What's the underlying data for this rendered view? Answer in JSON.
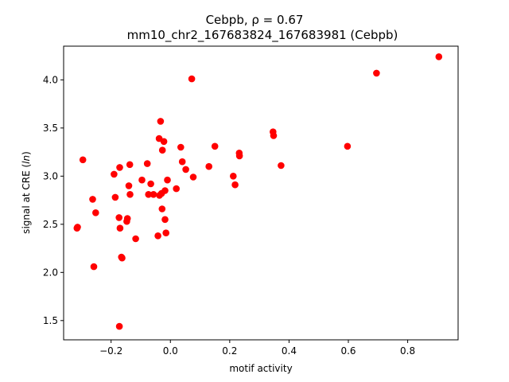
{
  "chart_data": {
    "type": "scatter",
    "title_line1": "Cebpb, ρ = 0.67",
    "title_line2": "mm10_chr2_167683824_167683981 (Cebpb)",
    "xlabel": "motif activity",
    "ylabel_prefix": "signal at CRE (",
    "ylabel_italic": "ln",
    "ylabel_suffix": ")",
    "xlim": [
      -0.36,
      0.97
    ],
    "ylim": [
      1.3,
      4.35
    ],
    "xticks": [
      -0.2,
      0.0,
      0.2,
      0.4,
      0.6,
      0.8
    ],
    "xtick_labels": [
      "−0.2",
      "0.0",
      "0.2",
      "0.4",
      "0.6",
      "0.8"
    ],
    "yticks": [
      1.5,
      2.0,
      2.5,
      3.0,
      3.5,
      4.0
    ],
    "ytick_labels": [
      "1.5",
      "2.0",
      "2.5",
      "3.0",
      "3.5",
      "4.0"
    ],
    "grid": false,
    "marker_color": "#ff0000",
    "points": [
      {
        "x": -0.315,
        "y": 2.46
      },
      {
        "x": -0.313,
        "y": 2.47
      },
      {
        "x": -0.295,
        "y": 3.17
      },
      {
        "x": -0.262,
        "y": 2.76
      },
      {
        "x": -0.258,
        "y": 2.06
      },
      {
        "x": -0.252,
        "y": 2.62
      },
      {
        "x": -0.19,
        "y": 3.02
      },
      {
        "x": -0.186,
        "y": 2.78
      },
      {
        "x": -0.171,
        "y": 3.09
      },
      {
        "x": -0.173,
        "y": 2.57
      },
      {
        "x": -0.17,
        "y": 2.46
      },
      {
        "x": -0.165,
        "y": 2.16
      },
      {
        "x": -0.163,
        "y": 2.15
      },
      {
        "x": -0.172,
        "y": 1.44
      },
      {
        "x": -0.147,
        "y": 2.53
      },
      {
        "x": -0.145,
        "y": 2.56
      },
      {
        "x": -0.14,
        "y": 2.9
      },
      {
        "x": -0.137,
        "y": 3.12
      },
      {
        "x": -0.136,
        "y": 2.81
      },
      {
        "x": -0.117,
        "y": 2.35
      },
      {
        "x": -0.096,
        "y": 2.96
      },
      {
        "x": -0.078,
        "y": 3.13
      },
      {
        "x": -0.074,
        "y": 2.81
      },
      {
        "x": -0.066,
        "y": 2.92
      },
      {
        "x": -0.057,
        "y": 2.81
      },
      {
        "x": -0.042,
        "y": 2.38
      },
      {
        "x": -0.038,
        "y": 3.39
      },
      {
        "x": -0.037,
        "y": 2.8
      },
      {
        "x": -0.033,
        "y": 3.57
      },
      {
        "x": -0.03,
        "y": 2.82
      },
      {
        "x": -0.028,
        "y": 2.66
      },
      {
        "x": -0.027,
        "y": 3.27
      },
      {
        "x": -0.022,
        "y": 3.36
      },
      {
        "x": -0.018,
        "y": 2.85
      },
      {
        "x": -0.018,
        "y": 2.55
      },
      {
        "x": -0.015,
        "y": 2.41
      },
      {
        "x": -0.01,
        "y": 2.96
      },
      {
        "x": 0.02,
        "y": 2.87
      },
      {
        "x": 0.035,
        "y": 3.3
      },
      {
        "x": 0.04,
        "y": 3.15
      },
      {
        "x": 0.052,
        "y": 3.07
      },
      {
        "x": 0.072,
        "y": 4.01
      },
      {
        "x": 0.077,
        "y": 2.99
      },
      {
        "x": 0.13,
        "y": 3.1
      },
      {
        "x": 0.15,
        "y": 3.31
      },
      {
        "x": 0.212,
        "y": 3.0
      },
      {
        "x": 0.218,
        "y": 2.91
      },
      {
        "x": 0.232,
        "y": 3.24
      },
      {
        "x": 0.233,
        "y": 3.21
      },
      {
        "x": 0.346,
        "y": 3.46
      },
      {
        "x": 0.348,
        "y": 3.42
      },
      {
        "x": 0.373,
        "y": 3.11
      },
      {
        "x": 0.597,
        "y": 3.31
      },
      {
        "x": 0.695,
        "y": 4.07
      },
      {
        "x": 0.905,
        "y": 4.24
      }
    ]
  }
}
